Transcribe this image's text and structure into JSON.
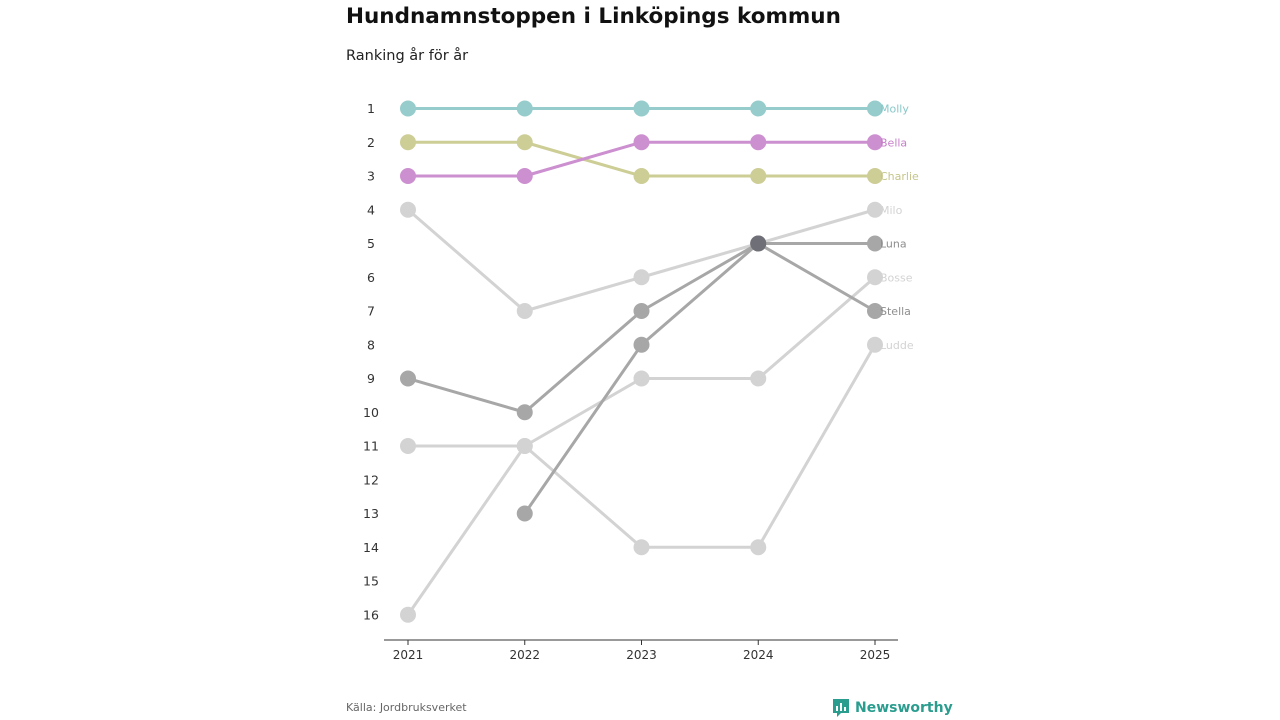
{
  "chart_data": {
    "type": "line",
    "title": "Hundnamnstoppen i Linköpings kommun",
    "subtitle": "Ranking år för år",
    "x": [
      "2021",
      "2022",
      "2023",
      "2024",
      "2025"
    ],
    "ylim": [
      1,
      16
    ],
    "y_ticks": [
      "1",
      "2",
      "3",
      "4",
      "5",
      "6",
      "7",
      "8",
      "9",
      "10",
      "11",
      "12",
      "13",
      "14",
      "15",
      "16"
    ],
    "y_inverted": true,
    "series": [
      {
        "name": "Milo",
        "values": [
          4,
          7,
          6,
          5,
          4
        ],
        "color": "#d3d3d3",
        "label_color": "#d3d3d3"
      },
      {
        "name": "Bosse",
        "values": [
          16,
          11,
          9,
          9,
          6
        ],
        "color": "#d3d3d3",
        "label_color": "#d3d3d3"
      },
      {
        "name": "Ludde",
        "values": [
          11,
          11,
          14,
          14,
          8
        ],
        "color": "#d3d3d3",
        "label_color": "#d3d3d3"
      },
      {
        "name": "Stella",
        "values": [
          null,
          13,
          8,
          5,
          7
        ],
        "color": "#a7a7a7",
        "label_color": "#8e8e8e"
      },
      {
        "name": "Luna",
        "values": [
          9,
          10,
          7,
          5,
          5
        ],
        "color": "#a7a7a7",
        "label_color": "#8e8e8e"
      },
      {
        "name": "Charlie",
        "values": [
          2,
          2,
          3,
          3,
          3
        ],
        "color": "#cdcd96",
        "label_color": "#c5c58a"
      },
      {
        "name": "Bella",
        "values": [
          3,
          3,
          2,
          2,
          2
        ],
        "color": "#cc8fcf",
        "label_color": "#c77fca"
      },
      {
        "name": "Molly",
        "values": [
          1,
          1,
          1,
          1,
          1
        ],
        "color": "#96cccc",
        "label_color": "#8ac8c8"
      }
    ],
    "highlight": {
      "series": "Luna",
      "x": "2024",
      "value": 5,
      "color": "#6f6f78"
    }
  },
  "footer": {
    "source": "Källa: Jordbruksverket",
    "brand": "Newsworthy",
    "brand_icon": "bar-chart-bubble-icon",
    "brand_color": "#2a9d8f"
  }
}
